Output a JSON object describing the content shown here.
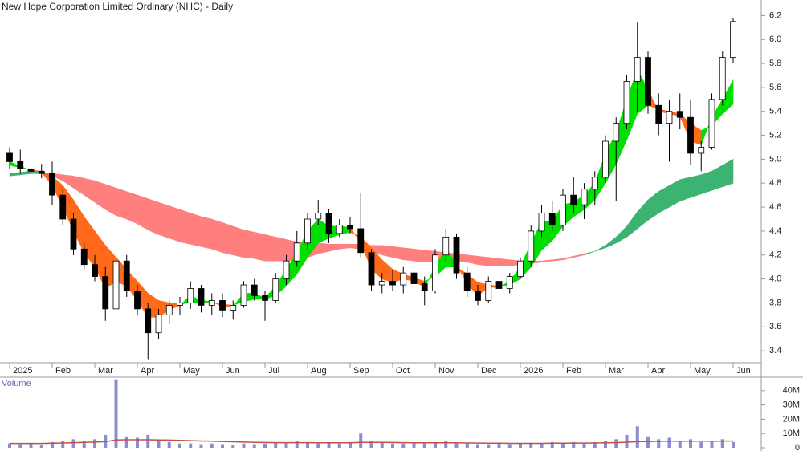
{
  "chart_data": [
    {
      "type": "candlestick",
      "title": "New Hope Corporation Limited Ordinary (NHC) - Daily",
      "categories": [
        "2025",
        null,
        null,
        null,
        "Feb",
        null,
        null,
        null,
        "Mar",
        null,
        null,
        null,
        "Apr",
        null,
        null,
        null,
        "May",
        null,
        null,
        null,
        "Jun",
        null,
        null,
        null,
        "Jul",
        null,
        null,
        null,
        "Aug",
        null,
        null,
        null,
        "Sep",
        null,
        null,
        null,
        "Oct",
        null,
        null,
        null,
        "Nov",
        null,
        null,
        null,
        "Dec",
        null,
        null,
        null,
        "2026",
        null,
        null,
        null,
        "Feb",
        null,
        null,
        null,
        "Mar",
        null,
        null,
        null,
        "Apr",
        null,
        null,
        null,
        "May",
        null,
        null,
        null,
        "Jun"
      ],
      "open": [
        5.05,
        4.98,
        4.92,
        4.9,
        4.88,
        4.7,
        4.5,
        4.25,
        4.12,
        4.02,
        3.75,
        4.15,
        3.9,
        3.75,
        3.55,
        3.7,
        3.78,
        3.8,
        3.92,
        3.78,
        3.82,
        3.74,
        3.78,
        3.95,
        3.86,
        3.82,
        4.0,
        4.15,
        4.3,
        4.5,
        4.55,
        4.38,
        4.45,
        4.42,
        4.22,
        3.95,
        3.98,
        3.95,
        4.05,
        3.96,
        3.9,
        4.2,
        4.35,
        4.05,
        3.9,
        3.82,
        3.98,
        3.92,
        4.02,
        4.15,
        4.4,
        4.55,
        4.45,
        4.7,
        4.62,
        4.75,
        4.85,
        5.15,
        5.3,
        5.65,
        5.85,
        5.45,
        5.3,
        5.4,
        5.35,
        5.05,
        5.1,
        5.5,
        5.85
      ],
      "high": [
        5.1,
        5.08,
        5.0,
        4.96,
        4.98,
        4.75,
        4.55,
        4.3,
        4.2,
        4.1,
        4.22,
        4.2,
        3.95,
        3.8,
        3.75,
        3.82,
        3.85,
        3.98,
        3.95,
        3.88,
        3.88,
        3.82,
        3.98,
        4.0,
        3.9,
        4.05,
        4.2,
        4.4,
        4.55,
        4.66,
        4.58,
        4.5,
        4.52,
        4.72,
        4.25,
        4.05,
        4.08,
        4.1,
        4.12,
        4.02,
        4.25,
        4.42,
        4.38,
        4.1,
        3.95,
        4.02,
        4.05,
        4.05,
        4.18,
        4.45,
        4.62,
        4.65,
        4.75,
        4.85,
        4.8,
        4.9,
        5.2,
        5.35,
        5.7,
        6.14,
        5.9,
        5.55,
        5.5,
        5.55,
        5.5,
        5.15,
        5.55,
        5.9,
        6.18
      ],
      "low": [
        4.92,
        4.88,
        4.82,
        4.84,
        4.62,
        4.45,
        4.2,
        4.08,
        3.98,
        3.65,
        3.7,
        3.85,
        3.7,
        3.33,
        3.5,
        3.62,
        3.7,
        3.75,
        3.72,
        3.7,
        3.68,
        3.66,
        3.76,
        3.82,
        3.65,
        3.8,
        3.95,
        4.1,
        4.25,
        4.45,
        4.3,
        4.35,
        4.38,
        4.18,
        3.9,
        3.88,
        3.9,
        3.88,
        3.92,
        3.78,
        3.88,
        4.15,
        4.0,
        3.85,
        3.78,
        3.8,
        3.85,
        3.88,
        4.0,
        4.1,
        4.35,
        4.4,
        4.4,
        4.55,
        4.5,
        4.62,
        4.8,
        4.65,
        5.25,
        5.4,
        5.38,
        5.2,
        4.98,
        5.25,
        4.95,
        4.9,
        5.08,
        5.45,
        5.8
      ],
      "close": [
        4.98,
        4.92,
        4.9,
        4.88,
        4.7,
        4.5,
        4.25,
        4.12,
        4.02,
        3.75,
        4.15,
        3.9,
        3.75,
        3.55,
        3.7,
        3.78,
        3.8,
        3.92,
        3.78,
        3.82,
        3.74,
        3.78,
        3.95,
        3.86,
        3.82,
        4.0,
        4.15,
        4.3,
        4.5,
        4.55,
        4.38,
        4.45,
        4.42,
        4.22,
        3.95,
        3.98,
        3.95,
        4.05,
        3.96,
        3.9,
        4.2,
        4.35,
        4.05,
        3.9,
        3.82,
        3.98,
        3.92,
        4.02,
        4.15,
        4.4,
        4.55,
        4.45,
        4.7,
        4.62,
        4.75,
        4.85,
        5.15,
        5.3,
        5.65,
        5.85,
        5.45,
        5.3,
        5.4,
        5.35,
        5.05,
        5.1,
        5.5,
        5.85,
        6.15
      ],
      "up_color": "#ffffff",
      "down_color": "#000000",
      "bands": [
        {
          "fast": [
            4.88,
            4.89,
            4.9,
            4.9,
            4.86,
            4.82,
            4.76,
            4.7,
            4.64,
            4.58,
            4.53,
            4.5,
            4.46,
            4.41,
            4.37,
            4.34,
            4.31,
            4.29,
            4.27,
            4.25,
            4.22,
            4.2,
            4.18,
            4.17,
            4.15,
            4.15,
            4.15,
            4.16,
            4.18,
            4.21,
            4.23,
            4.25,
            4.26,
            4.25,
            4.23,
            4.2,
            4.18,
            4.16,
            4.15,
            4.14,
            4.14,
            4.15,
            4.15,
            4.14,
            4.12,
            4.11,
            4.11,
            4.11,
            4.12,
            4.13,
            4.14,
            4.15,
            4.16,
            4.18,
            4.2,
            4.23,
            4.28,
            4.35,
            4.44,
            4.56,
            4.66,
            4.73,
            4.78,
            4.83,
            4.85,
            4.87,
            4.9,
            4.95,
            5.0
          ],
          "slow": [
            4.86,
            4.87,
            4.88,
            4.88,
            4.88,
            4.87,
            4.86,
            4.84,
            4.82,
            4.79,
            4.76,
            4.73,
            4.7,
            4.67,
            4.64,
            4.61,
            4.58,
            4.55,
            4.52,
            4.5,
            4.47,
            4.44,
            4.41,
            4.39,
            4.37,
            4.35,
            4.33,
            4.31,
            4.3,
            4.3,
            4.29,
            4.29,
            4.29,
            4.29,
            4.28,
            4.28,
            4.27,
            4.26,
            4.25,
            4.24,
            4.23,
            4.22,
            4.21,
            4.2,
            4.19,
            4.18,
            4.17,
            4.16,
            4.15,
            4.15,
            4.15,
            4.16,
            4.17,
            4.19,
            4.21,
            4.23,
            4.26,
            4.3,
            4.35,
            4.42,
            4.49,
            4.55,
            4.6,
            4.65,
            4.68,
            4.71,
            4.74,
            4.77,
            4.8
          ],
          "up_color": "#3cb371",
          "down_color": "#ff7f7f"
        },
        {
          "fast": [
            4.98,
            4.94,
            4.91,
            4.89,
            4.78,
            4.6,
            4.4,
            4.22,
            4.1,
            3.92,
            3.98,
            3.94,
            3.82,
            3.68,
            3.68,
            3.74,
            3.78,
            3.86,
            3.82,
            3.81,
            3.77,
            3.77,
            3.88,
            3.88,
            3.84,
            3.94,
            4.08,
            4.22,
            4.4,
            4.5,
            4.44,
            4.44,
            4.43,
            4.3,
            4.08,
            4.0,
            3.97,
            4.0,
            3.98,
            3.93,
            4.1,
            4.26,
            4.12,
            3.96,
            3.86,
            3.93,
            3.93,
            3.98,
            4.1,
            4.3,
            4.48,
            4.48,
            4.62,
            4.64,
            4.7,
            4.8,
            5.05,
            5.22,
            5.5,
            5.75,
            5.58,
            5.4,
            5.38,
            5.36,
            5.15,
            5.12,
            5.35,
            5.5,
            5.66
          ],
          "slow": [
            4.95,
            4.93,
            4.91,
            4.9,
            4.86,
            4.78,
            4.66,
            4.52,
            4.4,
            4.28,
            4.18,
            4.08,
            3.98,
            3.88,
            3.82,
            3.8,
            3.79,
            3.8,
            3.8,
            3.8,
            3.79,
            3.78,
            3.81,
            3.83,
            3.83,
            3.86,
            3.94,
            4.04,
            4.18,
            4.3,
            4.34,
            4.37,
            4.39,
            4.35,
            4.26,
            4.16,
            4.08,
            4.04,
            4.01,
            3.98,
            4.02,
            4.1,
            4.1,
            4.04,
            3.97,
            3.95,
            3.94,
            3.95,
            4.0,
            4.1,
            4.24,
            4.32,
            4.44,
            4.52,
            4.58,
            4.66,
            4.8,
            4.96,
            5.16,
            5.38,
            5.45,
            5.42,
            5.4,
            5.38,
            5.3,
            5.24,
            5.28,
            5.38,
            5.46
          ],
          "up_color": "#00e000",
          "down_color": "#ff6a1a"
        }
      ],
      "ylim": [
        3.3,
        6.33
      ],
      "yticks": [
        3.4,
        3.6,
        3.8,
        {
          "value": 4,
          "label": "4.0"
        },
        4.2,
        4.4,
        4.6,
        4.8,
        {
          "value": 5,
          "label": "5.0"
        },
        5.2,
        5.4,
        5.6,
        5.8,
        {
          "value": 6,
          "label": "6.0"
        },
        6.2
      ]
    },
    {
      "type": "volume",
      "title": "Volume",
      "values": [
        3,
        2.5,
        2.8,
        2.2,
        4,
        5,
        6,
        5,
        6,
        9,
        48,
        8,
        7,
        9,
        5,
        4,
        3,
        3,
        2.5,
        3,
        2.5,
        2.2,
        3,
        2.5,
        3,
        4,
        3.5,
        5,
        4,
        3,
        3.5,
        3,
        4,
        10,
        5,
        4,
        3,
        3,
        3.5,
        3,
        4,
        5,
        3,
        3,
        2.5,
        2.5,
        3,
        2.5,
        3,
        3.5,
        3,
        4,
        3.5,
        4,
        3,
        4,
        5,
        6,
        9,
        15,
        8,
        6,
        7,
        5,
        6,
        4,
        5,
        6,
        4
      ],
      "color": "#8c8cd0",
      "line_values": [
        3,
        3,
        3,
        3,
        3.2,
        3.4,
        3.6,
        3.8,
        4,
        4.3,
        5.5,
        5.6,
        5.6,
        5.6,
        5.5,
        5.4,
        5.2,
        5,
        4.8,
        4.6,
        4.4,
        4.2,
        4,
        3.8,
        3.7,
        3.6,
        3.6,
        3.6,
        3.6,
        3.5,
        3.5,
        3.5,
        3.5,
        3.8,
        3.8,
        3.8,
        3.7,
        3.6,
        3.5,
        3.5,
        3.5,
        3.5,
        3.5,
        3.4,
        3.3,
        3.2,
        3.2,
        3.1,
        3.1,
        3.1,
        3.1,
        3.2,
        3.2,
        3.3,
        3.3,
        3.4,
        3.5,
        3.6,
        3.9,
        4.3,
        4.4,
        4.5,
        4.6,
        4.6,
        4.6,
        4.6,
        4.6,
        4.7,
        4.7
      ],
      "line_color": "#c0504d",
      "ylim": [
        0,
        50
      ],
      "yticks": [
        0,
        {
          "value": 10,
          "label": "10M"
        },
        {
          "value": 20,
          "label": "20M"
        },
        {
          "value": 30,
          "label": "30M"
        },
        {
          "value": 40,
          "label": "40M"
        }
      ]
    }
  ]
}
